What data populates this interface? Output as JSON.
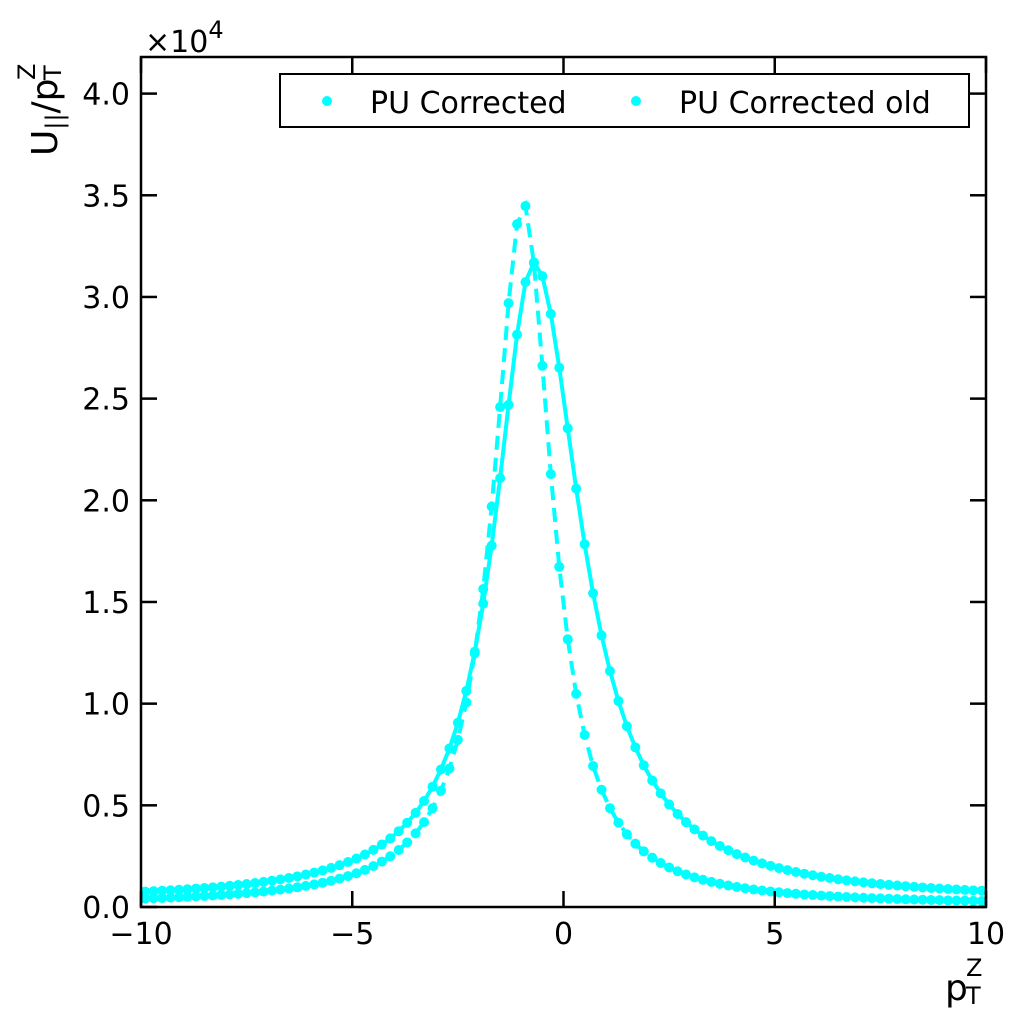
{
  "chart_data": {
    "type": "line",
    "xlabel_main": "p",
    "xlabel_sup": "Z",
    "xlabel_sub": "T",
    "ylabel_main": "U",
    "ylabel_sub": "||",
    "ylabel_slash": "/p",
    "ylabel_sup": "Z",
    "ylabel_sub2": "T",
    "y_multiplier_base": "×10",
    "y_multiplier_exp": "4",
    "xlim": [
      -10,
      10
    ],
    "ylim": [
      0,
      41800
    ],
    "x_ticks": [
      -10,
      -5,
      0,
      5,
      10
    ],
    "x_tick_labels": [
      "−10",
      "−5",
      "0",
      "5",
      "10"
    ],
    "y_ticks": [
      0,
      5000,
      10000,
      15000,
      20000,
      25000,
      30000,
      35000,
      40000
    ],
    "y_tick_labels": [
      "0.0",
      "0.5",
      "1.0",
      "1.5",
      "2.0",
      "2.5",
      "3.0",
      "3.5",
      "4.0"
    ],
    "grid": false,
    "legend_position": "top-right",
    "series": [
      {
        "name": "PU Corrected",
        "color": "#00ffff",
        "line_style": "solid",
        "marker": "circle",
        "peak_x": -0.7,
        "peak_y": 31700,
        "gamma_left": 1.12,
        "gamma_right": 1.35,
        "base": 300
      },
      {
        "name": "PU Corrected old",
        "color": "#00ffff",
        "line_style": "dashed",
        "marker": "circle",
        "peak_x": -0.95,
        "peak_y": 34600,
        "gamma_left": 0.86,
        "gamma_right": 0.82,
        "base": 100
      }
    ]
  }
}
